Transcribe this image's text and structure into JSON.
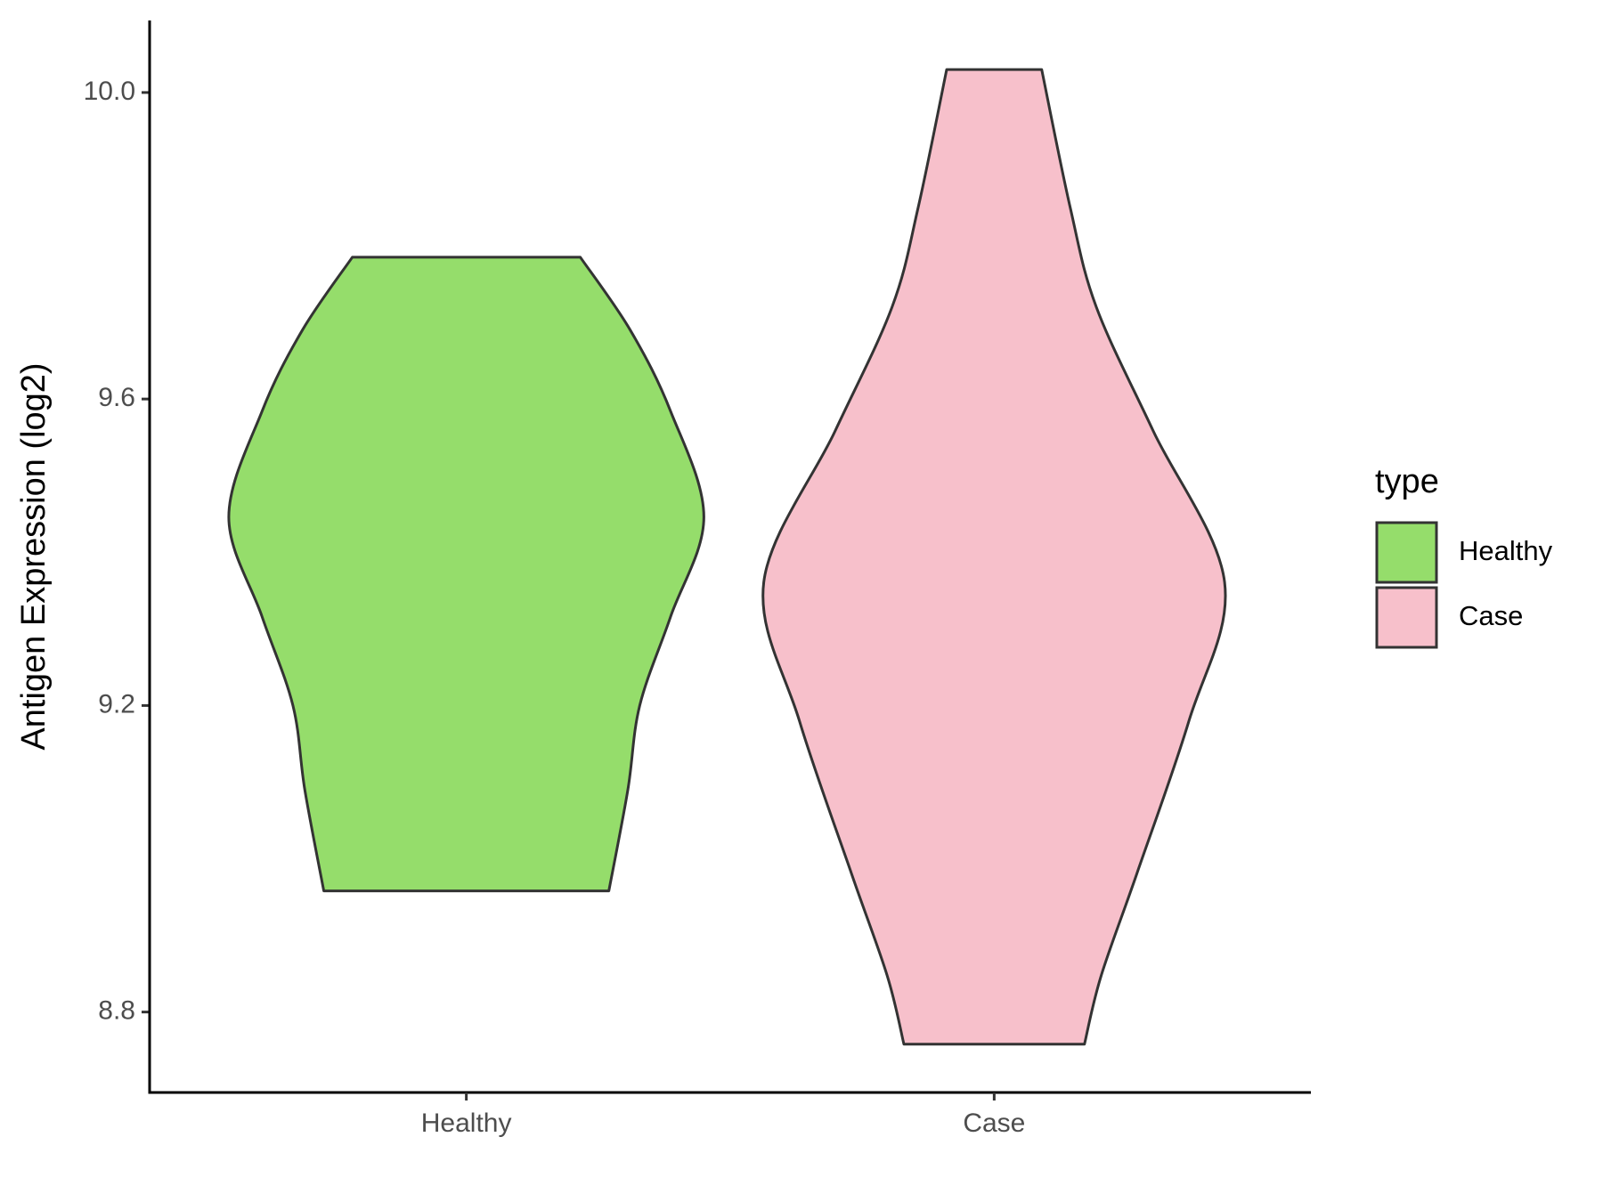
{
  "chart_data": {
    "type": "violin",
    "y_label": "Antigen Expression (log2)",
    "categories": [
      "Healthy",
      "Case"
    ],
    "legend_title": "type",
    "legend_position": "right",
    "series": [
      {
        "name": "Healthy",
        "color": "#95dd6b",
        "y": [
          9.785,
          9.69,
          9.584,
          9.446,
          9.316,
          9.2,
          9.09,
          8.958
        ],
        "density": [
          0.48,
          0.69,
          0.86,
          1.0,
          0.86,
          0.73,
          0.68,
          0.6
        ]
      },
      {
        "name": "Case",
        "color": "#f7c0cb",
        "y": [
          10.03,
          9.85,
          9.72,
          9.558,
          9.361,
          9.18,
          8.98,
          8.847,
          8.758
        ],
        "density": [
          0.2,
          0.32,
          0.43,
          0.67,
          0.97,
          0.82,
          0.6,
          0.45,
          0.38
        ]
      }
    ],
    "ylim": [
      8.695,
      10.094
    ],
    "yticks": [
      8.8,
      9.2,
      9.6,
      {
        "value": 10,
        "label": "10.0"
      }
    ]
  }
}
